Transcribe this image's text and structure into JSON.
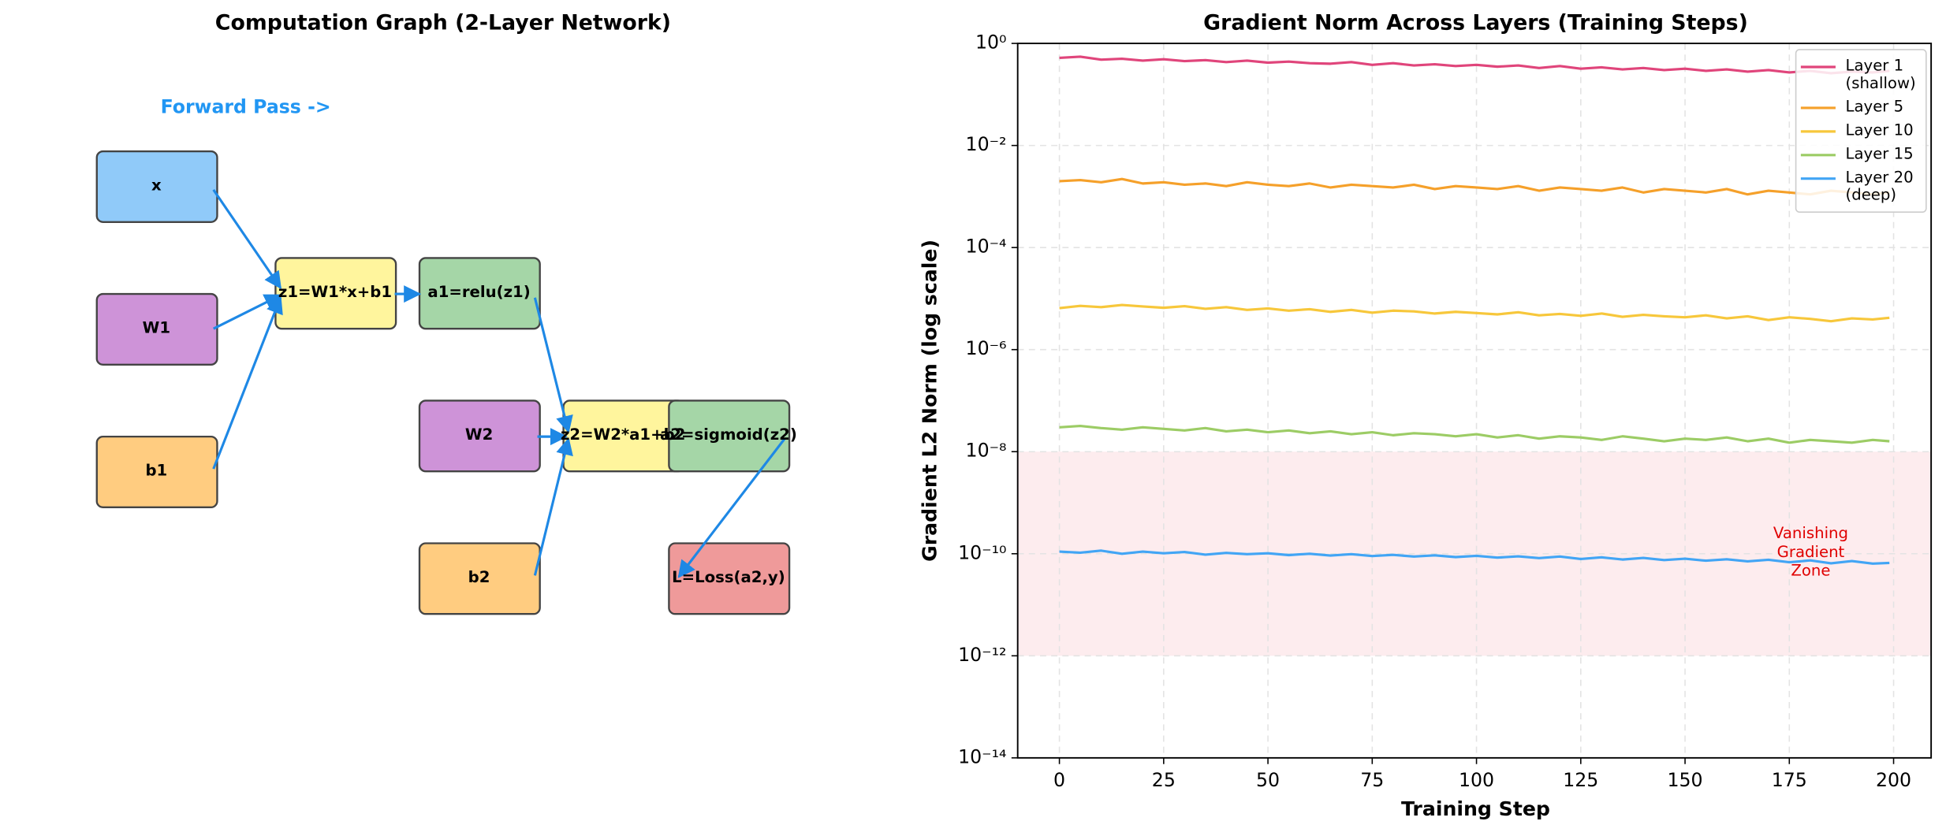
{
  "diagram": {
    "title": "Computation Graph (2-Layer Network)",
    "direction_label": "Forward Pass ->",
    "nodes": [
      {
        "label": "x"
      },
      {
        "label": "W1"
      },
      {
        "label": "b1"
      },
      {
        "label": "z1=W1*x+b1"
      },
      {
        "label": "a1=relu(z1)"
      },
      {
        "label": "W2"
      },
      {
        "label": "z2=W2*a1+b2"
      },
      {
        "label": "a2=sigmoid(z2)"
      },
      {
        "label": "b2"
      },
      {
        "label": "L=Loss(a2,y)"
      }
    ]
  },
  "chart_data": {
    "type": "line",
    "title": "Gradient Norm Across Layers (Training Steps)",
    "x_label": "Training Step",
    "y_label": "Gradient L2 Norm (log scale)",
    "x": [
      0,
      5,
      10,
      15,
      20,
      25,
      30,
      35,
      40,
      45,
      50,
      55,
      60,
      65,
      70,
      75,
      80,
      85,
      90,
      95,
      100,
      105,
      110,
      115,
      120,
      125,
      130,
      135,
      140,
      145,
      150,
      155,
      160,
      165,
      170,
      175,
      180,
      185,
      190,
      195,
      199
    ],
    "xlim": [
      -10,
      209
    ],
    "xticks": [
      0,
      25,
      50,
      75,
      100,
      125,
      150,
      175,
      200
    ],
    "ylim": [
      1e-14,
      1
    ],
    "log_y": true,
    "grid": true,
    "legend": "upper right",
    "yticks": [
      {
        "value": 1e-14,
        "label": "10⁻¹⁴"
      },
      {
        "value": 1e-12,
        "label": "10⁻¹²"
      },
      {
        "value": 1e-10,
        "label": "10⁻¹⁰"
      },
      {
        "value": 1e-08,
        "label": "10⁻⁸"
      },
      {
        "value": 1e-06,
        "label": "10⁻⁶"
      },
      {
        "value": 0.0001,
        "label": "10⁻⁴"
      },
      {
        "value": 0.01,
        "label": "10⁻²"
      },
      {
        "value": 1,
        "label": "10⁰"
      }
    ],
    "zone": {
      "label": "Vanishing\nGradient\nZone",
      "ylim": [
        1e-12,
        1e-08
      ],
      "color": "#fdecee",
      "text_color": "#e00000"
    },
    "series": [
      {
        "name": "Layer 1\n(shallow)",
        "color": "#e0457b",
        "values": [
          0.52,
          0.55,
          0.48,
          0.5,
          0.46,
          0.49,
          0.45,
          0.47,
          0.43,
          0.46,
          0.42,
          0.44,
          0.41,
          0.4,
          0.43,
          0.38,
          0.41,
          0.37,
          0.39,
          0.36,
          0.38,
          0.35,
          0.37,
          0.33,
          0.36,
          0.32,
          0.34,
          0.31,
          0.33,
          0.3,
          0.32,
          0.29,
          0.31,
          0.28,
          0.3,
          0.27,
          0.29,
          0.26,
          0.28,
          0.27,
          0.29
        ]
      },
      {
        "name": "Layer 5",
        "color": "#f5a02a",
        "values": [
          0.002,
          0.0021,
          0.0019,
          0.0022,
          0.0018,
          0.0019,
          0.0017,
          0.0018,
          0.0016,
          0.0019,
          0.0017,
          0.0016,
          0.0018,
          0.0015,
          0.0017,
          0.0016,
          0.0015,
          0.0017,
          0.0014,
          0.0016,
          0.0015,
          0.0014,
          0.0016,
          0.0013,
          0.0015,
          0.0014,
          0.0013,
          0.0015,
          0.0012,
          0.0014,
          0.0013,
          0.0012,
          0.0014,
          0.0011,
          0.0013,
          0.0012,
          0.0011,
          0.0013,
          0.0012,
          0.0011,
          0.0012
        ]
      },
      {
        "name": "Layer 10",
        "color": "#f7c73b",
        "values": [
          6.5e-06,
          7.2e-06,
          6.8e-06,
          7.5e-06,
          7e-06,
          6.6e-06,
          7.1e-06,
          6.3e-06,
          6.8e-06,
          6e-06,
          6.4e-06,
          5.8e-06,
          6.2e-06,
          5.5e-06,
          6e-06,
          5.3e-06,
          5.8e-06,
          5.6e-06,
          5.1e-06,
          5.5e-06,
          5.2e-06,
          4.9e-06,
          5.4e-06,
          4.7e-06,
          5e-06,
          4.6e-06,
          5.1e-06,
          4.4e-06,
          4.8e-06,
          4.5e-06,
          4.3e-06,
          4.7e-06,
          4.1e-06,
          4.5e-06,
          3.8e-06,
          4.3e-06,
          4e-06,
          3.6e-06,
          4.1e-06,
          3.9e-06,
          4.2e-06
        ]
      },
      {
        "name": "Layer 15",
        "color": "#9ccc65",
        "values": [
          3e-08,
          3.2e-08,
          2.9e-08,
          2.7e-08,
          3e-08,
          2.8e-08,
          2.6e-08,
          2.9e-08,
          2.5e-08,
          2.7e-08,
          2.4e-08,
          2.6e-08,
          2.3e-08,
          2.5e-08,
          2.2e-08,
          2.4e-08,
          2.1e-08,
          2.3e-08,
          2.2e-08,
          2e-08,
          2.2e-08,
          1.9e-08,
          2.1e-08,
          1.8e-08,
          2e-08,
          1.9e-08,
          1.7e-08,
          2e-08,
          1.8e-08,
          1.6e-08,
          1.8e-08,
          1.7e-08,
          1.9e-08,
          1.6e-08,
          1.8e-08,
          1.5e-08,
          1.7e-08,
          1.6e-08,
          1.5e-08,
          1.7e-08,
          1.6e-08
        ]
      },
      {
        "name": "Layer 20\n(deep)",
        "color": "#42a5f5",
        "values": [
          1.1e-10,
          1.05e-10,
          1.15e-10,
          1e-10,
          1.1e-10,
          1.02e-10,
          1.08e-10,
          9.6e-11,
          1.04e-10,
          9.8e-11,
          1.02e-10,
          9.4e-11,
          1e-10,
          9.2e-11,
          9.8e-11,
          9e-11,
          9.5e-11,
          8.8e-11,
          9.3e-11,
          8.6e-11,
          9.1e-11,
          8.4e-11,
          8.9e-11,
          8.2e-11,
          8.8e-11,
          7.9e-11,
          8.5e-11,
          7.7e-11,
          8.3e-11,
          7.5e-11,
          8e-11,
          7.3e-11,
          7.8e-11,
          7.1e-11,
          7.6e-11,
          6.8e-11,
          7.4e-11,
          6.5e-11,
          7.2e-11,
          6.4e-11,
          6.6e-11
        ]
      }
    ]
  }
}
